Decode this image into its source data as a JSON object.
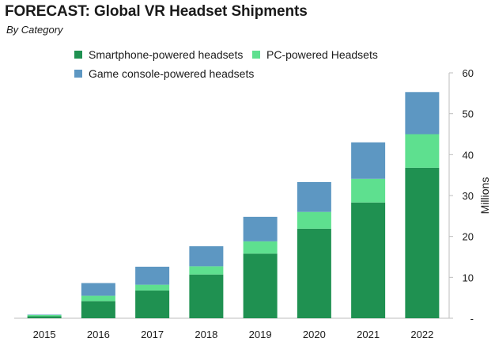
{
  "chart_data": {
    "type": "bar",
    "stacked": true,
    "title": "FORECAST: Global VR Headset Shipments",
    "subtitle": "By Category",
    "categories": [
      "2015",
      "2016",
      "2017",
      "2018",
      "2019",
      "2020",
      "2021",
      "2022"
    ],
    "series": [
      {
        "name": "Smartphone-powered headsets",
        "color": "#1f9151",
        "values": [
          0.5,
          4.2,
          6.8,
          10.7,
          15.8,
          21.9,
          28.3,
          36.8
        ]
      },
      {
        "name": "PC-powered Headsets",
        "color": "#5ee08f",
        "values": [
          0.3,
          1.3,
          1.4,
          2.0,
          3.0,
          4.1,
          5.8,
          8.2
        ]
      },
      {
        "name": "Game console-powered headsets",
        "color": "#5d97c2",
        "values": [
          0.1,
          3.1,
          4.4,
          4.9,
          6.0,
          7.3,
          8.9,
          10.3
        ]
      }
    ],
    "y_axis": {
      "label": "Millions",
      "ticks": [
        "-",
        "10",
        "20",
        "30",
        "40",
        "50",
        "60"
      ],
      "ylim": [
        0,
        60
      ],
      "position": "right"
    },
    "grid": false,
    "legend_placement": "top"
  }
}
